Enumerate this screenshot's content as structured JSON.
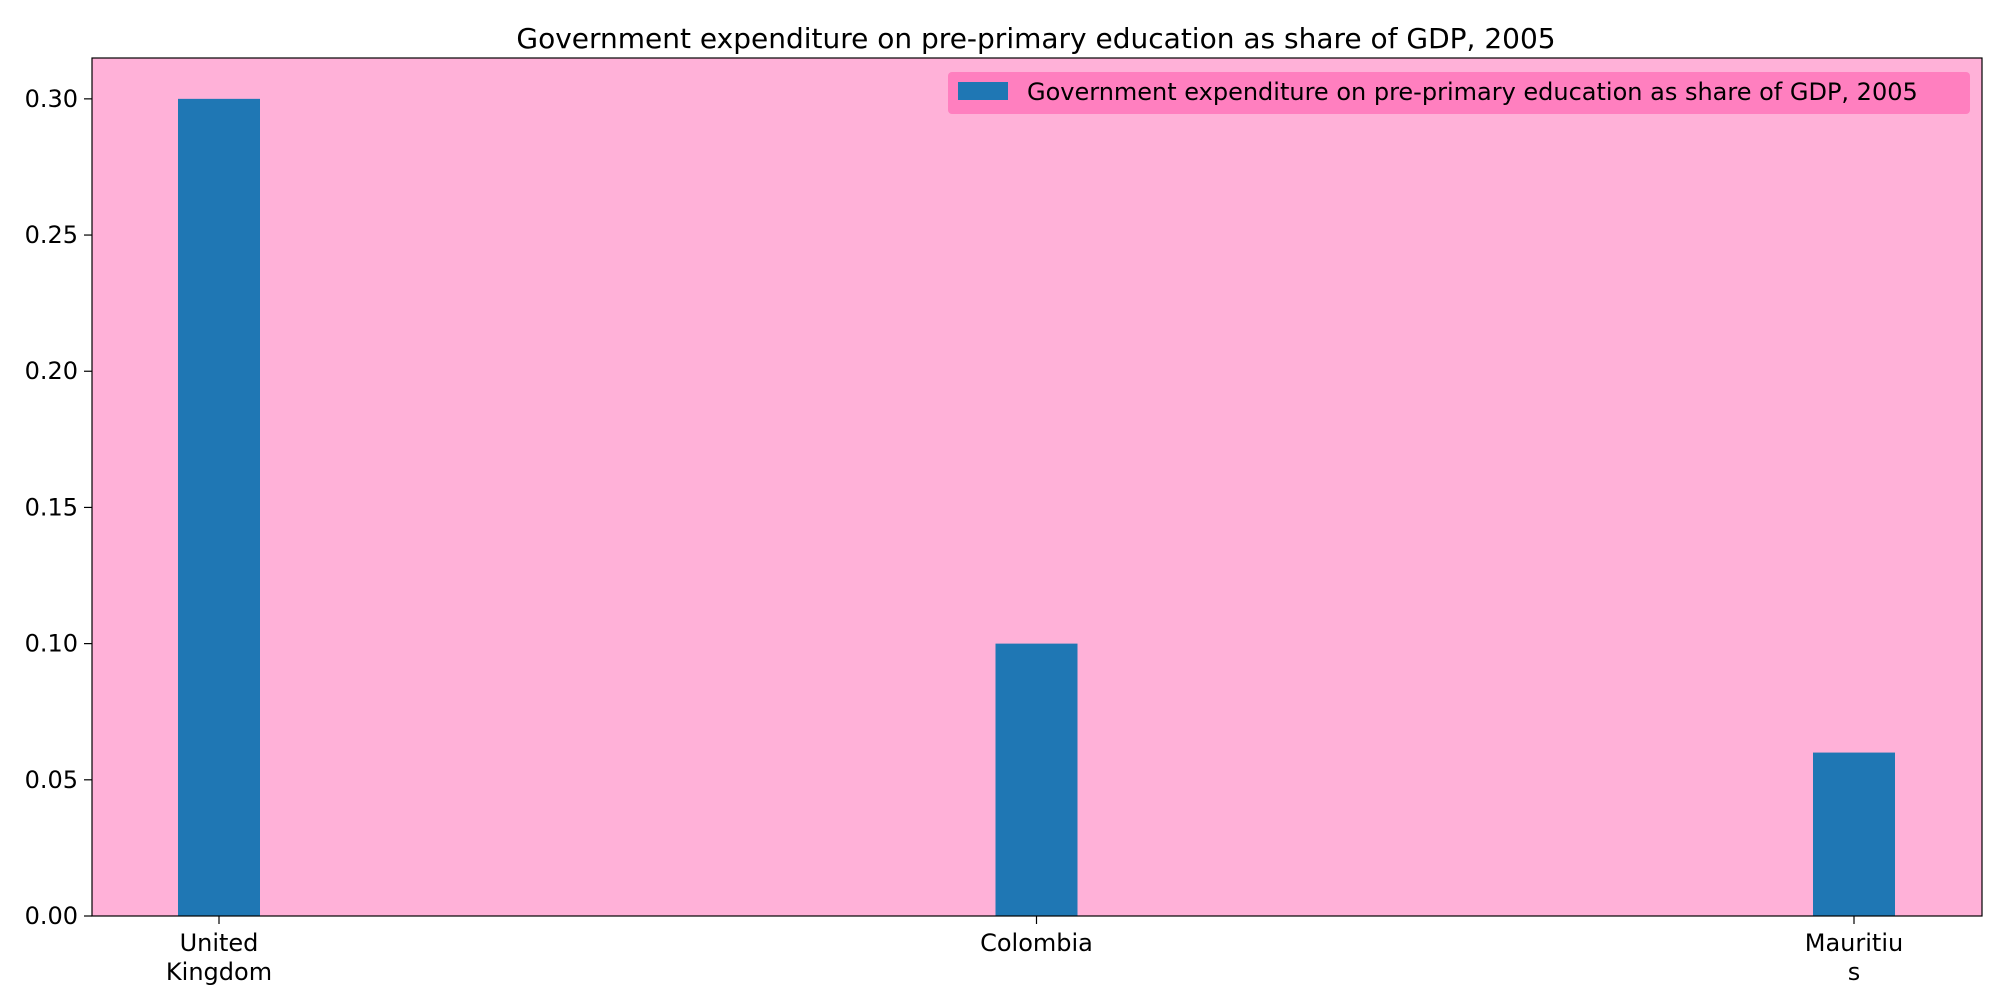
{
  "chart_data": {
    "type": "bar",
    "title": "Government expenditure on pre-primary education as share of GDP, 2005",
    "categories": [
      "United Kingdom",
      "Colombia",
      "Mauritius"
    ],
    "category_tick_labels": [
      [
        "United",
        "Kingdom"
      ],
      [
        "Colombia"
      ],
      [
        "Mauritiu",
        "s"
      ]
    ],
    "series": [
      {
        "name": "Government expenditure on pre-primary education as share of GDP, 2005",
        "values": [
          0.3,
          0.1,
          0.06
        ],
        "color": "#1f77b4"
      }
    ],
    "xlabel": "",
    "ylabel": "",
    "ylim": [
      0,
      0.315
    ],
    "yticks": [
      0.0,
      0.05,
      0.1,
      0.15,
      0.2,
      0.25,
      0.3
    ],
    "ytick_labels": [
      "0.00",
      "0.05",
      "0.10",
      "0.15",
      "0.20",
      "0.25",
      "0.30"
    ],
    "grid": false,
    "legend": "top-right",
    "colors": {
      "plot_background": "#ffb1d8",
      "legend_background": "#ff7fbf",
      "axis": "#000000"
    }
  }
}
